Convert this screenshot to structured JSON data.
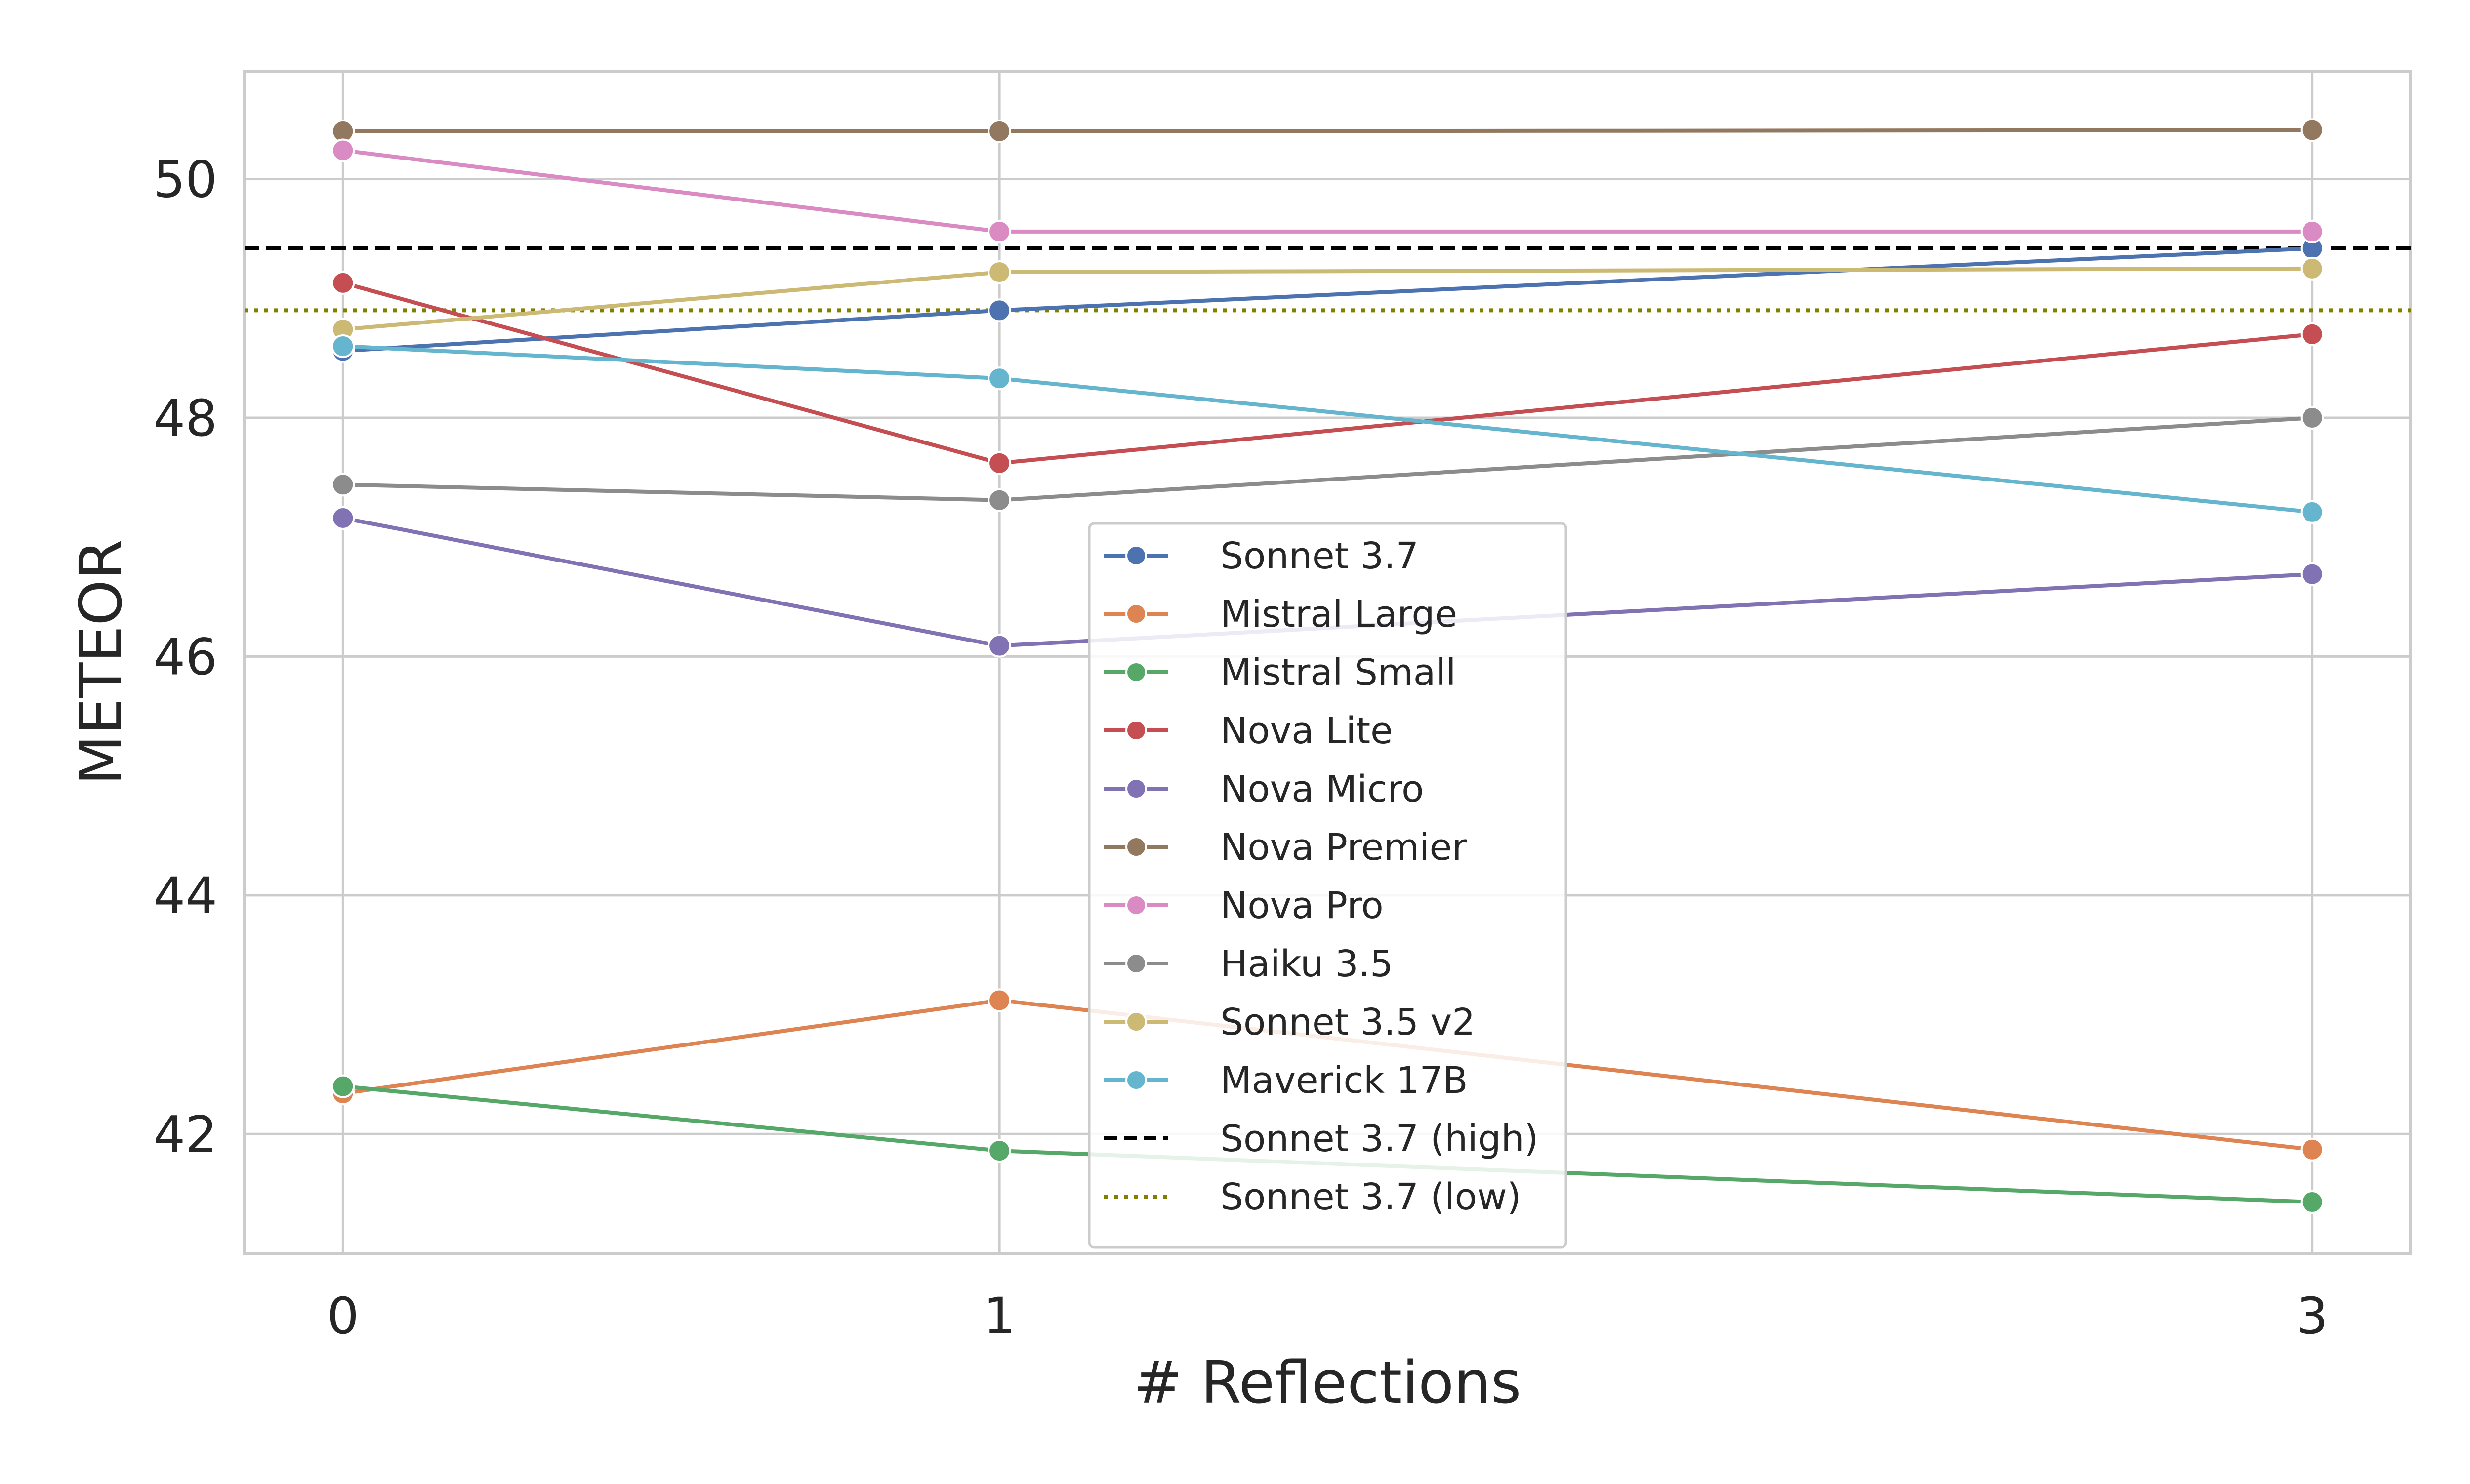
{
  "chart_data": {
    "type": "line",
    "title": "",
    "xlabel": "# Reflections",
    "ylabel": "METEOR",
    "x": [
      0,
      1,
      3
    ],
    "x_tick_labels": [
      "0",
      "1",
      "3"
    ],
    "xlim": [
      -0.15,
      3.15
    ],
    "ylim": [
      41.0,
      50.9
    ],
    "y_ticks": [
      42,
      44,
      46,
      48,
      50
    ],
    "y_tick_labels": [
      "42",
      "44",
      "46",
      "48",
      "50"
    ],
    "grid": true,
    "legend_position": "center",
    "series": [
      {
        "name": "Sonnet 3.7",
        "color": "#4c72b0",
        "values": [
          48.56,
          48.9,
          49.42
        ]
      },
      {
        "name": "Mistral Large",
        "color": "#dd8452",
        "values": [
          42.34,
          43.12,
          41.87
        ]
      },
      {
        "name": "Mistral Small",
        "color": "#55a868",
        "values": [
          42.4,
          41.86,
          41.43
        ]
      },
      {
        "name": "Nova Lite",
        "color": "#c44e52",
        "values": [
          49.13,
          47.62,
          48.7
        ]
      },
      {
        "name": "Nova Micro",
        "color": "#8172b3",
        "values": [
          47.16,
          46.09,
          46.69
        ]
      },
      {
        "name": "Nova Premier",
        "color": "#937860",
        "values": [
          50.4,
          50.4,
          50.41
        ]
      },
      {
        "name": "Nova Pro",
        "color": "#da8bc3",
        "values": [
          50.24,
          49.56,
          49.56
        ]
      },
      {
        "name": "Haiku 3.5",
        "color": "#8c8c8c",
        "values": [
          47.44,
          47.31,
          48.0
        ]
      },
      {
        "name": "Sonnet 3.5 v2",
        "color": "#ccb974",
        "values": [
          48.74,
          49.22,
          49.25
        ]
      },
      {
        "name": "Maverick 17B",
        "color": "#64b5cd",
        "values": [
          48.6,
          48.33,
          47.21
        ]
      }
    ],
    "reference_lines": [
      {
        "name": " Sonnet 3.7 (high)",
        "color": "#000000",
        "style": "dashed",
        "value": 49.42
      },
      {
        "name": " Sonnet 3.7 (low)",
        "color": "#808000",
        "style": "dotted",
        "value": 48.9
      }
    ]
  }
}
